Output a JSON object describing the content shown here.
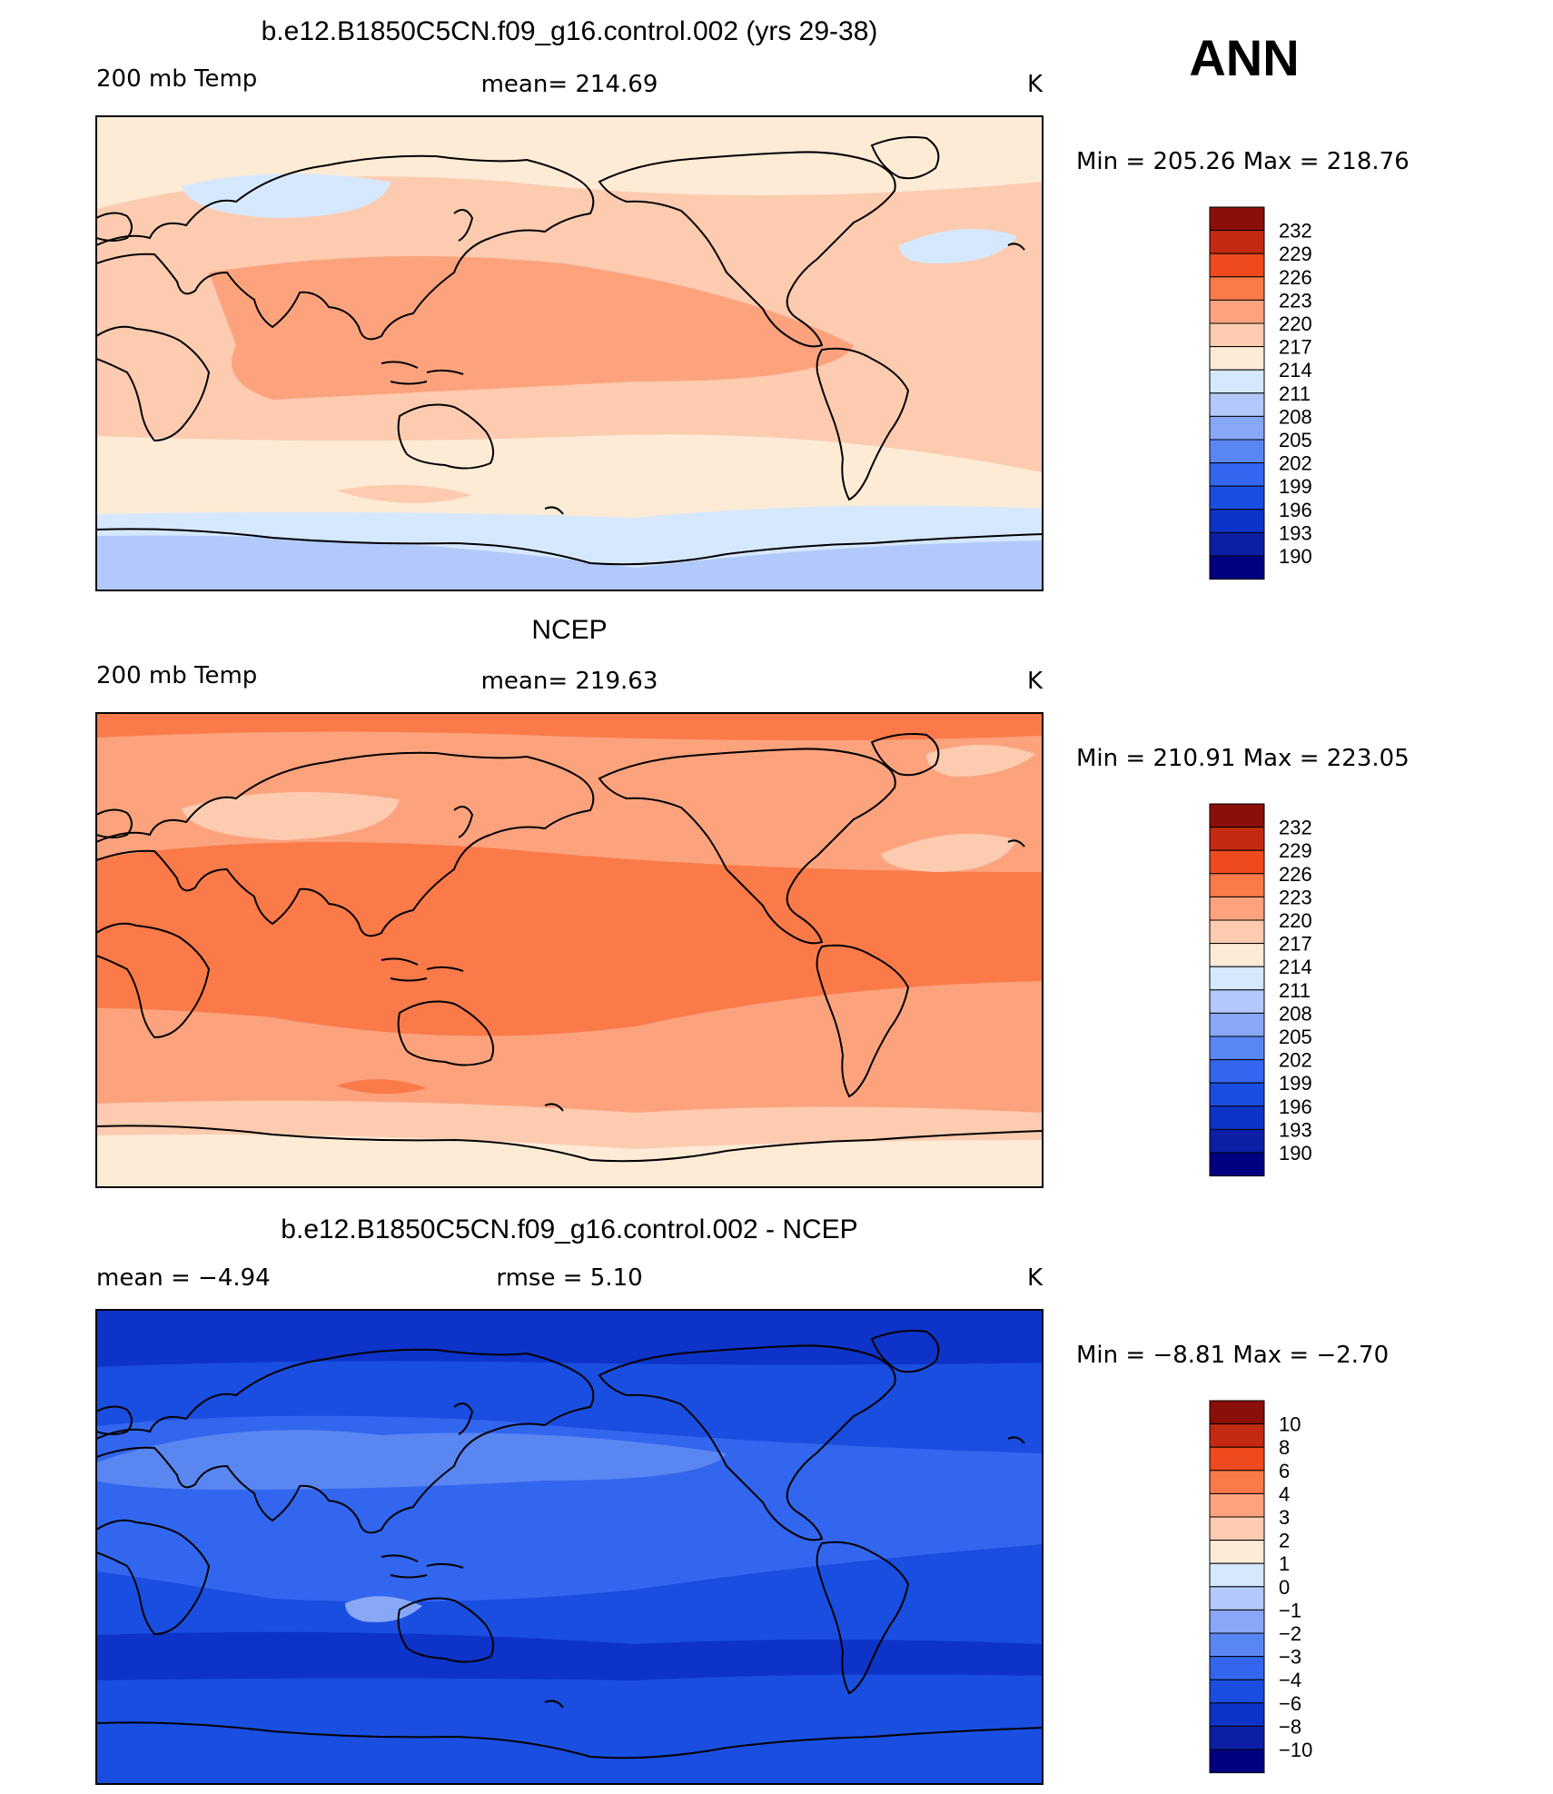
{
  "season": "ANN",
  "colors": {
    "scale": [
      "#000080",
      "#0a1fa3",
      "#0d33c8",
      "#1a4ee0",
      "#3366ef",
      "#5a86f2",
      "#88a8f7",
      "#b3c9fb",
      "#d6e8fd",
      "#fdebd6",
      "#fdcbb0",
      "#fca37e",
      "#fa7a4a",
      "#ee4a1e",
      "#c42a12",
      "#8a0f08"
    ],
    "coast": "#000000"
  },
  "panels": [
    {
      "title": "b.e12.B1850C5CN.f09_g16.control.002 (yrs 29-38)",
      "left_label": "200 mb Temp",
      "center_label": "mean=  214.69",
      "units": "K",
      "range_text": "Min  =  205.26  Max  =  218.76",
      "levels": [
        "232",
        "229",
        "226",
        "223",
        "220",
        "217",
        "214",
        "211",
        "208",
        "205",
        "202",
        "199",
        "196",
        "193",
        "190"
      ],
      "field": {
        "base": 214,
        "bands": [
          {
            "from_lat": 90,
            "to_lat": 60,
            "value": 212.5
          },
          {
            "from_lat": 60,
            "to_lat": 35,
            "value": 213
          },
          {
            "from_lat": 35,
            "to_lat": -25,
            "value": 216
          },
          {
            "from_lat": -25,
            "to_lat": -50,
            "value": 213
          },
          {
            "from_lat": -50,
            "to_lat": -62,
            "value": 210
          },
          {
            "from_lat": -62,
            "to_lat": -90,
            "value": 207
          }
        ]
      }
    },
    {
      "title": "NCEP",
      "left_label": "200 mb Temp",
      "center_label": "mean=  219.63",
      "units": "K",
      "range_text": "Min  =  210.91  Max  =  223.05",
      "levels": [
        "232",
        "229",
        "226",
        "223",
        "220",
        "217",
        "214",
        "211",
        "208",
        "205",
        "202",
        "199",
        "196",
        "193",
        "190"
      ],
      "field": {
        "bands": [
          {
            "from_lat": 90,
            "to_lat": 75,
            "value": 221
          },
          {
            "from_lat": 75,
            "to_lat": 40,
            "value": 218
          },
          {
            "from_lat": 40,
            "to_lat": -25,
            "value": 221
          },
          {
            "from_lat": -25,
            "to_lat": -55,
            "value": 218
          },
          {
            "from_lat": -55,
            "to_lat": -90,
            "value": 214
          }
        ]
      }
    },
    {
      "title": "b.e12.B1850C5CN.f09_g16.control.002 - NCEP",
      "left_label": "mean  =     −4.94",
      "center_label": "rmse  =     5.10",
      "units": "K",
      "range_text": "Min  =    −8.81  Max  =    −2.70",
      "levels": [
        "10",
        "8",
        "6",
        "4",
        "3",
        "2",
        "1",
        "0",
        "−1",
        "−2",
        "−3",
        "−4",
        "−6",
        "−8",
        "−10"
      ],
      "field": {
        "bands": [
          {
            "from_lat": 90,
            "to_lat": 70,
            "value": -8.5
          },
          {
            "from_lat": 70,
            "to_lat": 45,
            "value": -5
          },
          {
            "from_lat": 45,
            "to_lat": -30,
            "value": -3.5
          },
          {
            "from_lat": -30,
            "to_lat": -60,
            "value": -5
          },
          {
            "from_lat": -60,
            "to_lat": -90,
            "value": -5.5
          }
        ]
      }
    }
  ]
}
